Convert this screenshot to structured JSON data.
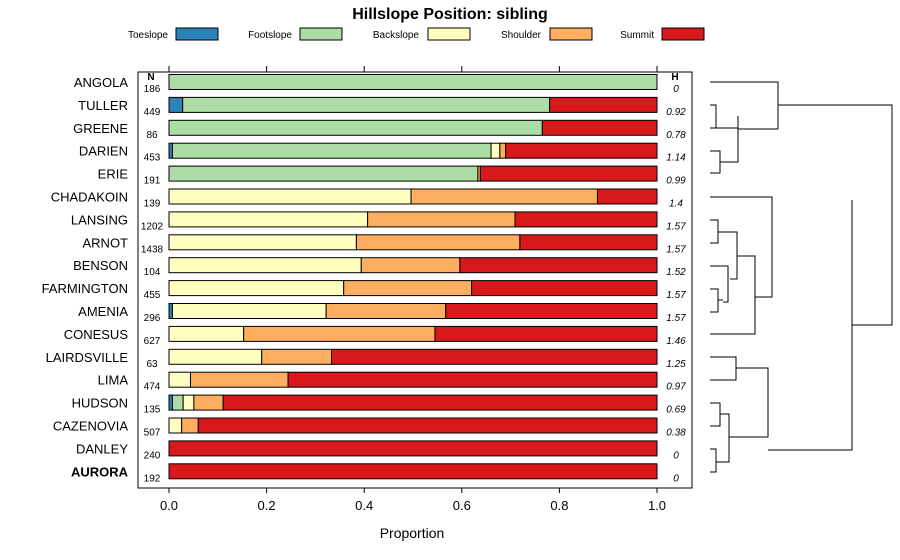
{
  "chart_data": {
    "type": "stacked-bar-horizontal",
    "title": "Hillslope Position: sibling",
    "xlabel": "Proportion",
    "xlim": [
      0,
      1
    ],
    "xticks": [
      0.0,
      0.2,
      0.4,
      0.6,
      0.8,
      1.0
    ],
    "xtick_labels": [
      "0.0",
      "0.2",
      "0.4",
      "0.6",
      "0.8",
      "1.0"
    ],
    "legend": [
      {
        "name": "Toeslope",
        "color": "#2b83ba"
      },
      {
        "name": "Footslope",
        "color": "#abdda4"
      },
      {
        "name": "Backslope",
        "color": "#ffffbf"
      },
      {
        "name": "Shoulder",
        "color": "#fdae61"
      },
      {
        "name": "Summit",
        "color": "#d7191c"
      }
    ],
    "n_header": "N",
    "h_header": "H",
    "rows": [
      {
        "name": "ANGOLA",
        "n": "186",
        "h": "0",
        "values": [
          0,
          1.0,
          0,
          0,
          0
        ],
        "bold": false
      },
      {
        "name": "TULLER",
        "n": "449",
        "h": "0.92",
        "values": [
          0.028,
          0.752,
          0,
          0,
          0.22
        ],
        "bold": false
      },
      {
        "name": "GREENE",
        "n": "86",
        "h": "0.78",
        "values": [
          0,
          0.765,
          0,
          0,
          0.235
        ],
        "bold": false
      },
      {
        "name": "DARIEN",
        "n": "453",
        "h": "1.14",
        "values": [
          0.007,
          0.653,
          0.018,
          0.012,
          0.31
        ],
        "bold": false
      },
      {
        "name": "ERIE",
        "n": "191",
        "h": "0.99",
        "values": [
          0,
          0.633,
          0,
          0.005,
          0.362
        ],
        "bold": false
      },
      {
        "name": "CHADAKOIN",
        "n": "139",
        "h": "1.4",
        "values": [
          0,
          0,
          0.496,
          0.382,
          0.122
        ],
        "bold": false
      },
      {
        "name": "LANSING",
        "n": "1202",
        "h": "1.57",
        "values": [
          0,
          0,
          0.407,
          0.302,
          0.291
        ],
        "bold": false
      },
      {
        "name": "ARNOT",
        "n": "1438",
        "h": "1.57",
        "values": [
          0,
          0,
          0.384,
          0.335,
          0.281
        ],
        "bold": false
      },
      {
        "name": "BENSON",
        "n": "104",
        "h": "1.52",
        "values": [
          0,
          0,
          0.394,
          0.202,
          0.404
        ],
        "bold": false
      },
      {
        "name": "FARMINGTON",
        "n": "455",
        "h": "1.57",
        "values": [
          0,
          0,
          0.358,
          0.262,
          0.38
        ],
        "bold": false
      },
      {
        "name": "AMENIA",
        "n": "296",
        "h": "1.57",
        "values": [
          0.007,
          0,
          0.315,
          0.245,
          0.433
        ],
        "bold": false
      },
      {
        "name": "CONESUS",
        "n": "627",
        "h": "1.46",
        "values": [
          0,
          0,
          0.153,
          0.392,
          0.455
        ],
        "bold": false
      },
      {
        "name": "LAIRDSVILLE",
        "n": "63",
        "h": "1.25",
        "values": [
          0,
          0,
          0.19,
          0.143,
          0.667
        ],
        "bold": false
      },
      {
        "name": "LIMA",
        "n": "474",
        "h": "0.97",
        "values": [
          0,
          0,
          0.044,
          0.2,
          0.756
        ],
        "bold": false
      },
      {
        "name": "HUDSON",
        "n": "135",
        "h": "0.69",
        "values": [
          0.007,
          0.022,
          0.022,
          0.06,
          0.889
        ],
        "bold": false
      },
      {
        "name": "CAZENOVIA",
        "n": "507",
        "h": "0.38",
        "values": [
          0,
          0,
          0.026,
          0.034,
          0.94
        ],
        "bold": false
      },
      {
        "name": "DANLEY",
        "n": "240",
        "h": "0",
        "values": [
          0,
          0,
          0,
          0,
          1.0
        ],
        "bold": false
      },
      {
        "name": "AURORA",
        "n": "192",
        "h": "0",
        "values": [
          0,
          0,
          0,
          0,
          1.0
        ],
        "bold": true
      }
    ]
  }
}
